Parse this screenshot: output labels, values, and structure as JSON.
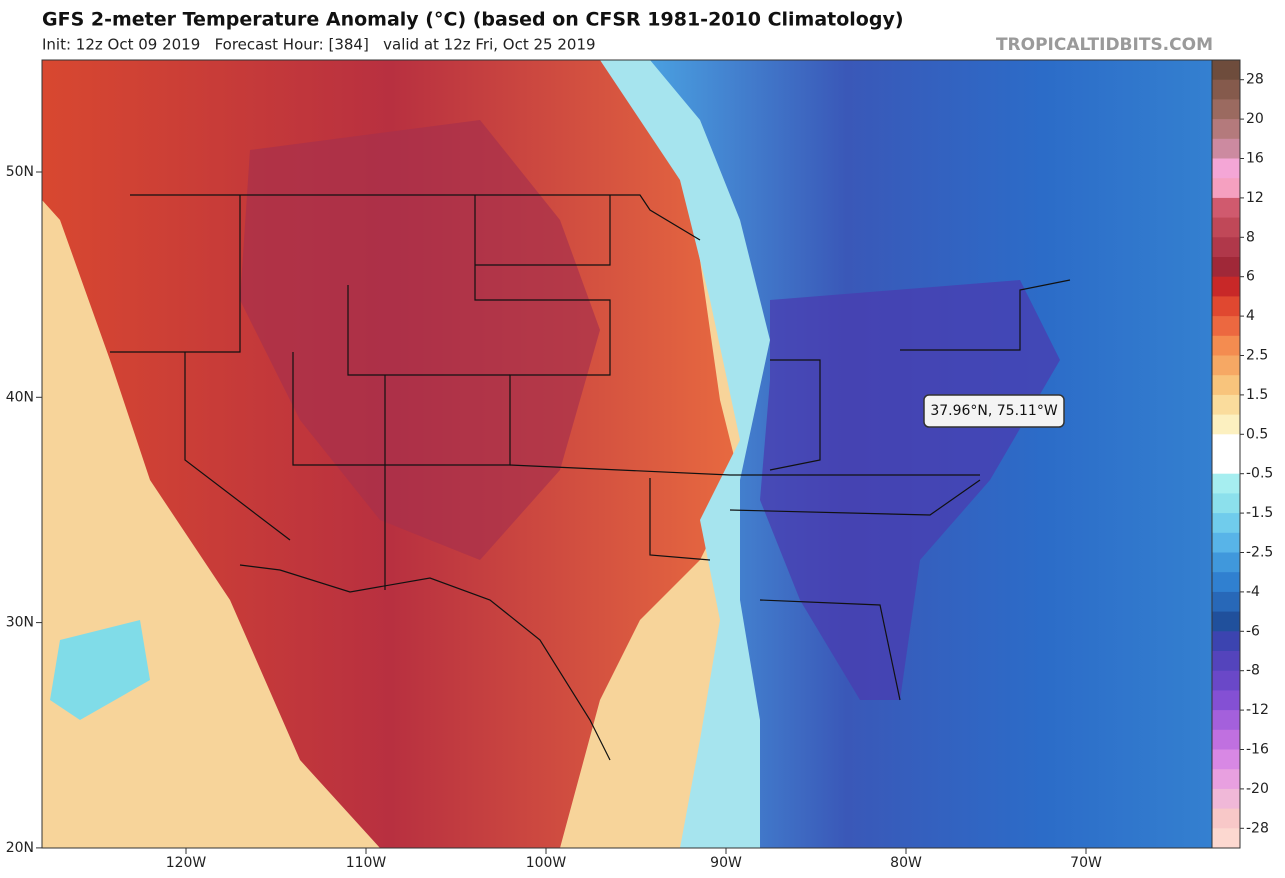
{
  "header": {
    "title": "GFS 2-meter Temperature Anomaly (°C) (based on CFSR 1981-2010 Climatology)",
    "subtitle": "Init: 12z Oct 09 2019   Forecast Hour: [384]   valid at 12z Fri, Oct 25 2019",
    "watermark": "TROPICALTIDBITS.COM"
  },
  "map": {
    "lat_labels": [
      "50N",
      "40N",
      "30N",
      "20N"
    ],
    "lon_labels": [
      "120W",
      "110W",
      "100W",
      "90W",
      "80W",
      "70W"
    ],
    "tooltip": "37.96°N, 75.11°W"
  },
  "colorbar": [
    {
      "label": "28",
      "colors": [
        "#6e4c3c",
        "#855a4c"
      ]
    },
    {
      "label": "20",
      "colors": [
        "#9b6a60",
        "#b47a7c"
      ]
    },
    {
      "label": "16",
      "colors": [
        "#cc8aa0",
        "#f4a6d6"
      ]
    },
    {
      "label": "12",
      "colors": [
        "#f5a0c0",
        "#d05a6e"
      ]
    },
    {
      "label": "8",
      "colors": [
        "#c04858",
        "#b0384a"
      ]
    },
    {
      "label": "6",
      "colors": [
        "#a02838",
        "#c82828"
      ]
    },
    {
      "label": "4",
      "colors": [
        "#e04830",
        "#ec6840"
      ]
    },
    {
      "label": "2.5",
      "colors": [
        "#f48c50",
        "#f6a864"
      ]
    },
    {
      "label": "1.5",
      "colors": [
        "#f8c47c",
        "#fadc9c"
      ]
    },
    {
      "label": "0.5",
      "colors": [
        "#fcf0c0",
        "#ffffff"
      ]
    },
    {
      "label": "-0.5",
      "colors": [
        "#ffffff",
        "#a6eef0"
      ]
    },
    {
      "label": "-1.5",
      "colors": [
        "#8ce0ec",
        "#70ccec"
      ]
    },
    {
      "label": "-2.5",
      "colors": [
        "#58b4e8",
        "#4098dc"
      ]
    },
    {
      "label": "-4",
      "colors": [
        "#3080d0",
        "#2868b8"
      ]
    },
    {
      "label": "-6",
      "colors": [
        "#20509c",
        "#3c44b0"
      ]
    },
    {
      "label": "-8",
      "colors": [
        "#5444bc",
        "#6a48c8"
      ]
    },
    {
      "label": "-12",
      "colors": [
        "#8450d4",
        "#a460dc"
      ]
    },
    {
      "label": "-16",
      "colors": [
        "#c070e0",
        "#d888e4"
      ]
    },
    {
      "label": "-20",
      "colors": [
        "#e8a0e0",
        "#f0b8d8"
      ]
    },
    {
      "label": "-28",
      "colors": [
        "#f8c8c8",
        "#fcd8d0"
      ]
    }
  ]
}
